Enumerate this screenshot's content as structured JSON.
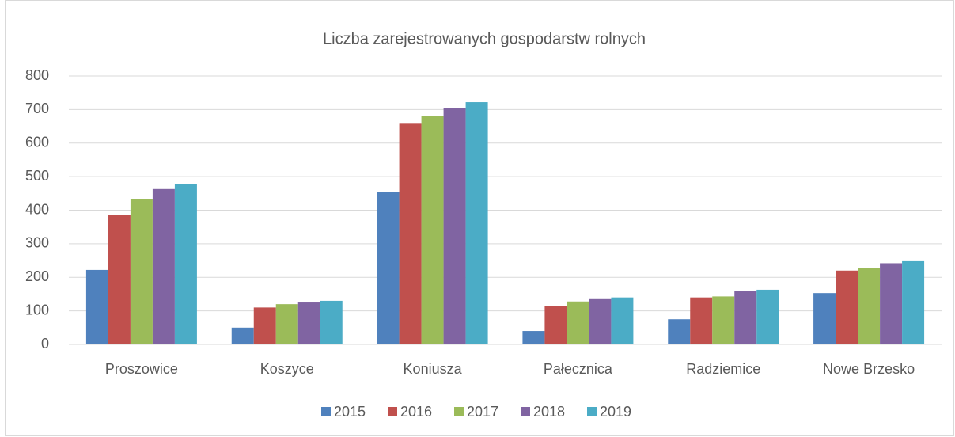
{
  "chart_data": {
    "type": "bar",
    "title": "Liczba zarejestrowanych gospodarstw rolnych",
    "categories": [
      "Proszowice",
      "Koszyce",
      "Koniusza",
      "Pałecznica",
      "Radziemice",
      "Nowe Brzesko"
    ],
    "series": [
      {
        "name": "2015",
        "color": "#4f81bd",
        "values": [
          222,
          50,
          455,
          40,
          75,
          153
        ]
      },
      {
        "name": "2016",
        "color": "#c0504d",
        "values": [
          387,
          110,
          660,
          115,
          140,
          220
        ]
      },
      {
        "name": "2017",
        "color": "#9bbb59",
        "values": [
          432,
          120,
          682,
          128,
          143,
          228
        ]
      },
      {
        "name": "2018",
        "color": "#8064a2",
        "values": [
          463,
          125,
          705,
          135,
          160,
          242
        ]
      },
      {
        "name": "2019",
        "color": "#4bacc6",
        "values": [
          479,
          130,
          722,
          140,
          163,
          248
        ]
      }
    ],
    "ylim": [
      0,
      800
    ],
    "yticks": [
      0,
      100,
      200,
      300,
      400,
      500,
      600,
      700,
      800
    ],
    "grid": true,
    "legend": "bottom"
  }
}
